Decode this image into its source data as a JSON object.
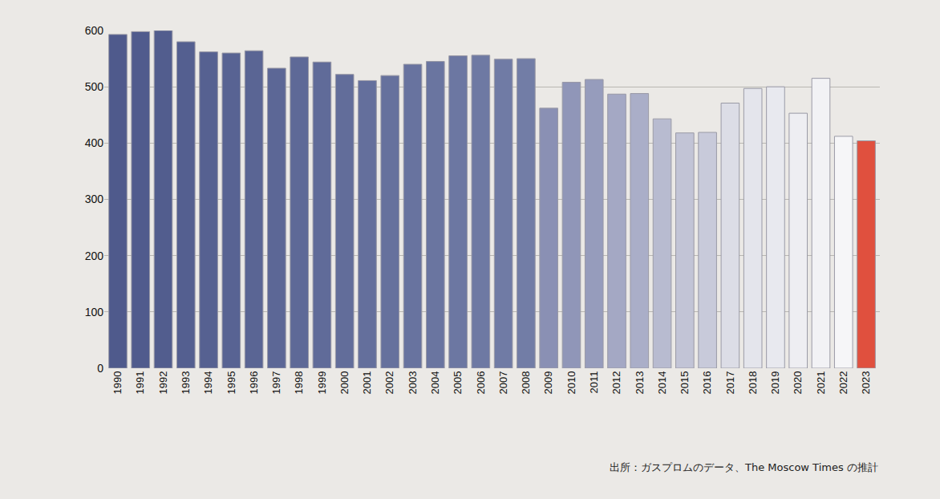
{
  "chart_data": {
    "type": "bar",
    "categories": [
      "1990",
      "1991",
      "1992",
      "1993",
      "1994",
      "1995",
      "1996",
      "1997",
      "1998",
      "1999",
      "2000",
      "2001",
      "2002",
      "2003",
      "2004",
      "2005",
      "2006",
      "2007",
      "2008",
      "2009",
      "2010",
      "2011",
      "2012",
      "2013",
      "2014",
      "2015",
      "2016",
      "2017",
      "2018",
      "2019",
      "2020",
      "2021",
      "2022",
      "2023"
    ],
    "values": [
      593,
      598,
      600,
      580,
      562,
      560,
      564,
      533,
      553,
      544,
      522,
      511,
      520,
      540,
      545,
      555,
      556,
      549,
      550,
      462,
      508,
      513,
      487,
      488,
      443,
      418,
      419,
      471,
      497,
      500,
      453,
      515,
      412,
      404
    ],
    "colors": [
      "#4f5a8c",
      "#505b8d",
      "#525d8e",
      "#545f90",
      "#566191",
      "#586393",
      "#5a6594",
      "#5c6796",
      "#5e6997",
      "#606b99",
      "#626d9a",
      "#646f9c",
      "#66719d",
      "#68739f",
      "#6a75a0",
      "#6c77a2",
      "#6e79a3",
      "#707ba5",
      "#727da6",
      "#8a90b4",
      "#9096b8",
      "#969cbc",
      "#a4a8c4",
      "#aaaec8",
      "#b8bbd0",
      "#c2c4d6",
      "#c8cada",
      "#dcdde6",
      "#e4e5ec",
      "#e8e9ef",
      "#eeeef2",
      "#f2f2f5",
      "#f6f6f8",
      "#e0503e"
    ],
    "ylim": [
      0,
      600
    ],
    "yticks": [
      0,
      100,
      200,
      300,
      400,
      500,
      600
    ],
    "grid": true,
    "annotations": [
      "出所：ガスプロムのデータ、The Moscow Times の推計"
    ]
  }
}
